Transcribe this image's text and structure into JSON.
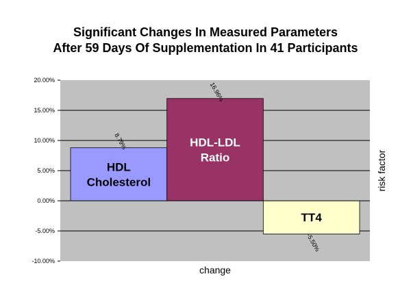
{
  "chart_data": {
    "type": "bar",
    "title": [
      "Significant Changes In Measured Parameters",
      "After 59 Days Of Supplementation In 41 Participants"
    ],
    "xlabel": "change",
    "ylabel": "risk factor",
    "ylim": [
      -0.1,
      0.2
    ],
    "yticks": [
      -0.1,
      -0.05,
      0.0,
      0.05,
      0.1,
      0.15,
      0.2
    ],
    "ytick_labels": [
      "-10.00%",
      "-5.00%",
      "0.00%",
      "5.00%",
      "10.00%",
      "15.00%",
      "20.00%"
    ],
    "grid": true,
    "series": [
      {
        "name": "HDL Cholesterol",
        "value": 0.0879,
        "data_label": "8.79%",
        "color": "#9999ff",
        "label_color": "#000000",
        "label_lines": [
          "HDL",
          "Cholesterol"
        ]
      },
      {
        "name": "HDL-LDL Ratio",
        "value": 0.1696,
        "data_label": "16.96%",
        "color": "#993366",
        "label_color": "#ffffff",
        "label_lines": [
          "HDL-LDL",
          "Ratio"
        ]
      },
      {
        "name": "TT4",
        "value": -0.055,
        "data_label": "-5.50%",
        "color": "#ffffcc",
        "label_color": "#000000",
        "label_lines": [
          "TT4"
        ]
      }
    ]
  }
}
